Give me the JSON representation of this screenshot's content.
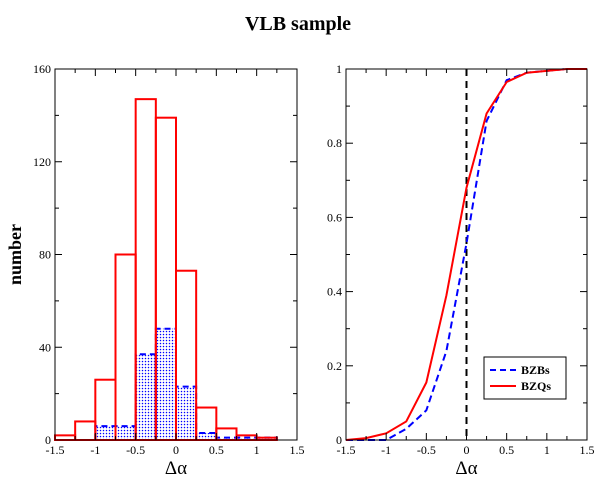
{
  "title": "VLB sample",
  "chart_data": [
    {
      "type": "bar",
      "panel": "left",
      "xlabel": "Δα",
      "ylabel": "number",
      "xlim": [
        -1.5,
        1.5
      ],
      "ylim": [
        0,
        160
      ],
      "xticks": [
        -1.5,
        -1,
        -0.5,
        0,
        0.5,
        1,
        1.5
      ],
      "xtick_labels": [
        "-1.5",
        "-1",
        "-0.5",
        "0",
        "0.5",
        "1",
        "1.5"
      ],
      "yticks": [
        0,
        40,
        80,
        120,
        160
      ],
      "ytick_labels": [
        "0",
        "40",
        "80",
        "120",
        "160"
      ],
      "bin_edges": [
        -1.5,
        -1.25,
        -1.0,
        -0.75,
        -0.5,
        -0.25,
        0.0,
        0.25,
        0.5,
        0.75,
        1.0,
        1.25,
        1.5
      ],
      "series": [
        {
          "name": "BZQs",
          "color": "#ff0000",
          "style": "solid-outline",
          "values": [
            2,
            8,
            26,
            80,
            147,
            139,
            73,
            14,
            5,
            2,
            1,
            0
          ]
        },
        {
          "name": "BZBs",
          "color": "#0000ff",
          "style": "dashed-outline-dotted-fill",
          "values": [
            0,
            0,
            6,
            6,
            37,
            48,
            23,
            3,
            1,
            1,
            1,
            0
          ]
        }
      ]
    },
    {
      "type": "line",
      "panel": "right",
      "xlabel": "Δα",
      "ylabel": "",
      "xlim": [
        -1.5,
        1.5
      ],
      "ylim": [
        0,
        1
      ],
      "xticks": [
        -1.5,
        -1,
        -0.5,
        0,
        0.5,
        1,
        1.5
      ],
      "xtick_labels": [
        "-1.5",
        "-1",
        "-0.5",
        "0",
        "0.5",
        "1",
        "1.5"
      ],
      "yticks": [
        0,
        0.2,
        0.4,
        0.6,
        0.8,
        1
      ],
      "ytick_labels": [
        "0",
        "0.2",
        "0.4",
        "0.6",
        "0.8",
        "1"
      ],
      "vline_x": 0,
      "legend": "lower-right",
      "series": [
        {
          "name": "BZBs",
          "color": "#0000ff",
          "dash": true,
          "x": [
            -1.5,
            -1.25,
            -1.0,
            -0.75,
            -0.5,
            -0.25,
            0.0,
            0.25,
            0.5,
            0.75,
            1.0,
            1.25,
            1.5
          ],
          "y": [
            0.0,
            0.0,
            0.0,
            0.03,
            0.08,
            0.24,
            0.53,
            0.86,
            0.97,
            0.99,
            0.995,
            1.0,
            1.0
          ]
        },
        {
          "name": "BZQs",
          "color": "#ff0000",
          "dash": false,
          "x": [
            -1.5,
            -1.25,
            -1.0,
            -0.75,
            -0.5,
            -0.25,
            0.0,
            0.25,
            0.5,
            0.75,
            1.0,
            1.25,
            1.5
          ],
          "y": [
            0.0,
            0.005,
            0.018,
            0.05,
            0.155,
            0.39,
            0.68,
            0.88,
            0.965,
            0.99,
            0.995,
            1.0,
            1.0
          ]
        }
      ]
    }
  ]
}
